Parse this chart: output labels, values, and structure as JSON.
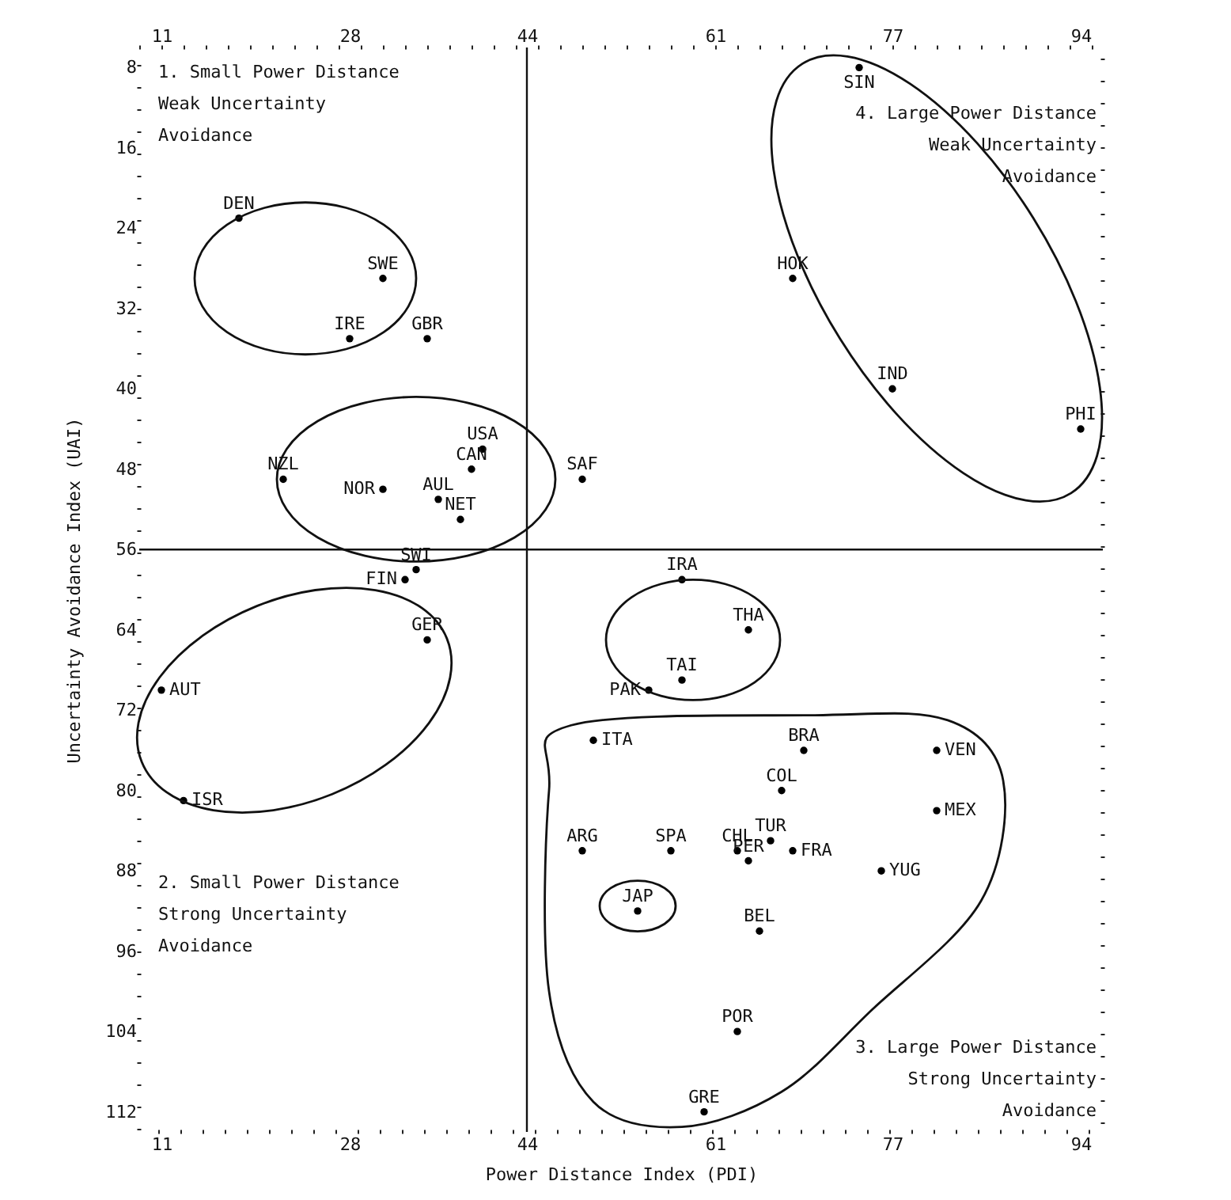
{
  "chart_data": {
    "type": "scatter",
    "xlabel": "Power Distance Index (PDI)",
    "ylabel": "Uncertainty Avoidance Index (UAI)",
    "xlim": [
      9,
      96
    ],
    "xticks": [
      11,
      28,
      44,
      61,
      77,
      94
    ],
    "x2lim": [
      9,
      96
    ],
    "x2ticks": [
      11,
      28,
      44,
      61,
      77,
      94
    ],
    "ylim": [
      114,
      6
    ],
    "yticks": [
      8,
      16,
      24,
      32,
      40,
      48,
      56,
      64,
      72,
      80,
      88,
      96,
      104,
      112
    ],
    "grid": false,
    "marker": "circle",
    "ref_lines": [
      {
        "axis": "x",
        "value": 44
      },
      {
        "axis": "y",
        "value": 56
      }
    ],
    "annotations": [
      "1. Small Power Distance\nWeak Uncertainty\nAvoidance",
      "2. Small Power Distance\nStrong Uncertainty\nAvoidance",
      "3. Large Power Distance\nStrong Uncertainty\nAvoidance",
      "4. Large Power Distance\nWeak Uncertainty\nAvoidance"
    ],
    "series": [
      {
        "color": "#000000",
        "x": [
          49,
          36,
          11,
          65,
          69,
          39,
          63,
          67,
          18,
          33,
          68,
          35,
          35,
          60,
          68,
          77,
          58,
          28,
          13,
          50,
          54,
          81,
          38,
          31,
          22,
          55,
          64,
          94,
          63,
          49,
          74,
          57,
          31,
          34,
          58,
          64,
          66,
          40,
          81,
          76
        ],
        "values": [
          86,
          51,
          70,
          94,
          76,
          48,
          86,
          80,
          23,
          59,
          86,
          35,
          65,
          112,
          29,
          40,
          59,
          35,
          81,
          75,
          92,
          82,
          53,
          50,
          49,
          70,
          87,
          44,
          104,
          49,
          8,
          86,
          29,
          58,
          69,
          64,
          85,
          46,
          76,
          88
        ],
        "value_labels": [
          "ARG",
          "AUL",
          "AUT",
          "BEL",
          "BRA",
          "CAN",
          "CHL",
          "COL",
          "DEN",
          "FIN",
          "FRA",
          "GBR",
          "GER",
          "GRE",
          "HOK",
          "IND",
          "IRA",
          "IRE",
          "ISR",
          "ITA",
          "JAP",
          "MEX",
          "NET",
          "NOR",
          "NZL",
          "PAK",
          "PER",
          "PHI",
          "POR",
          "SAF",
          "SIN",
          "SPA",
          "SWE",
          "SWI",
          "TAI",
          "THA",
          "TUR",
          "USA",
          "VEN",
          "YUG"
        ]
      }
    ]
  }
}
